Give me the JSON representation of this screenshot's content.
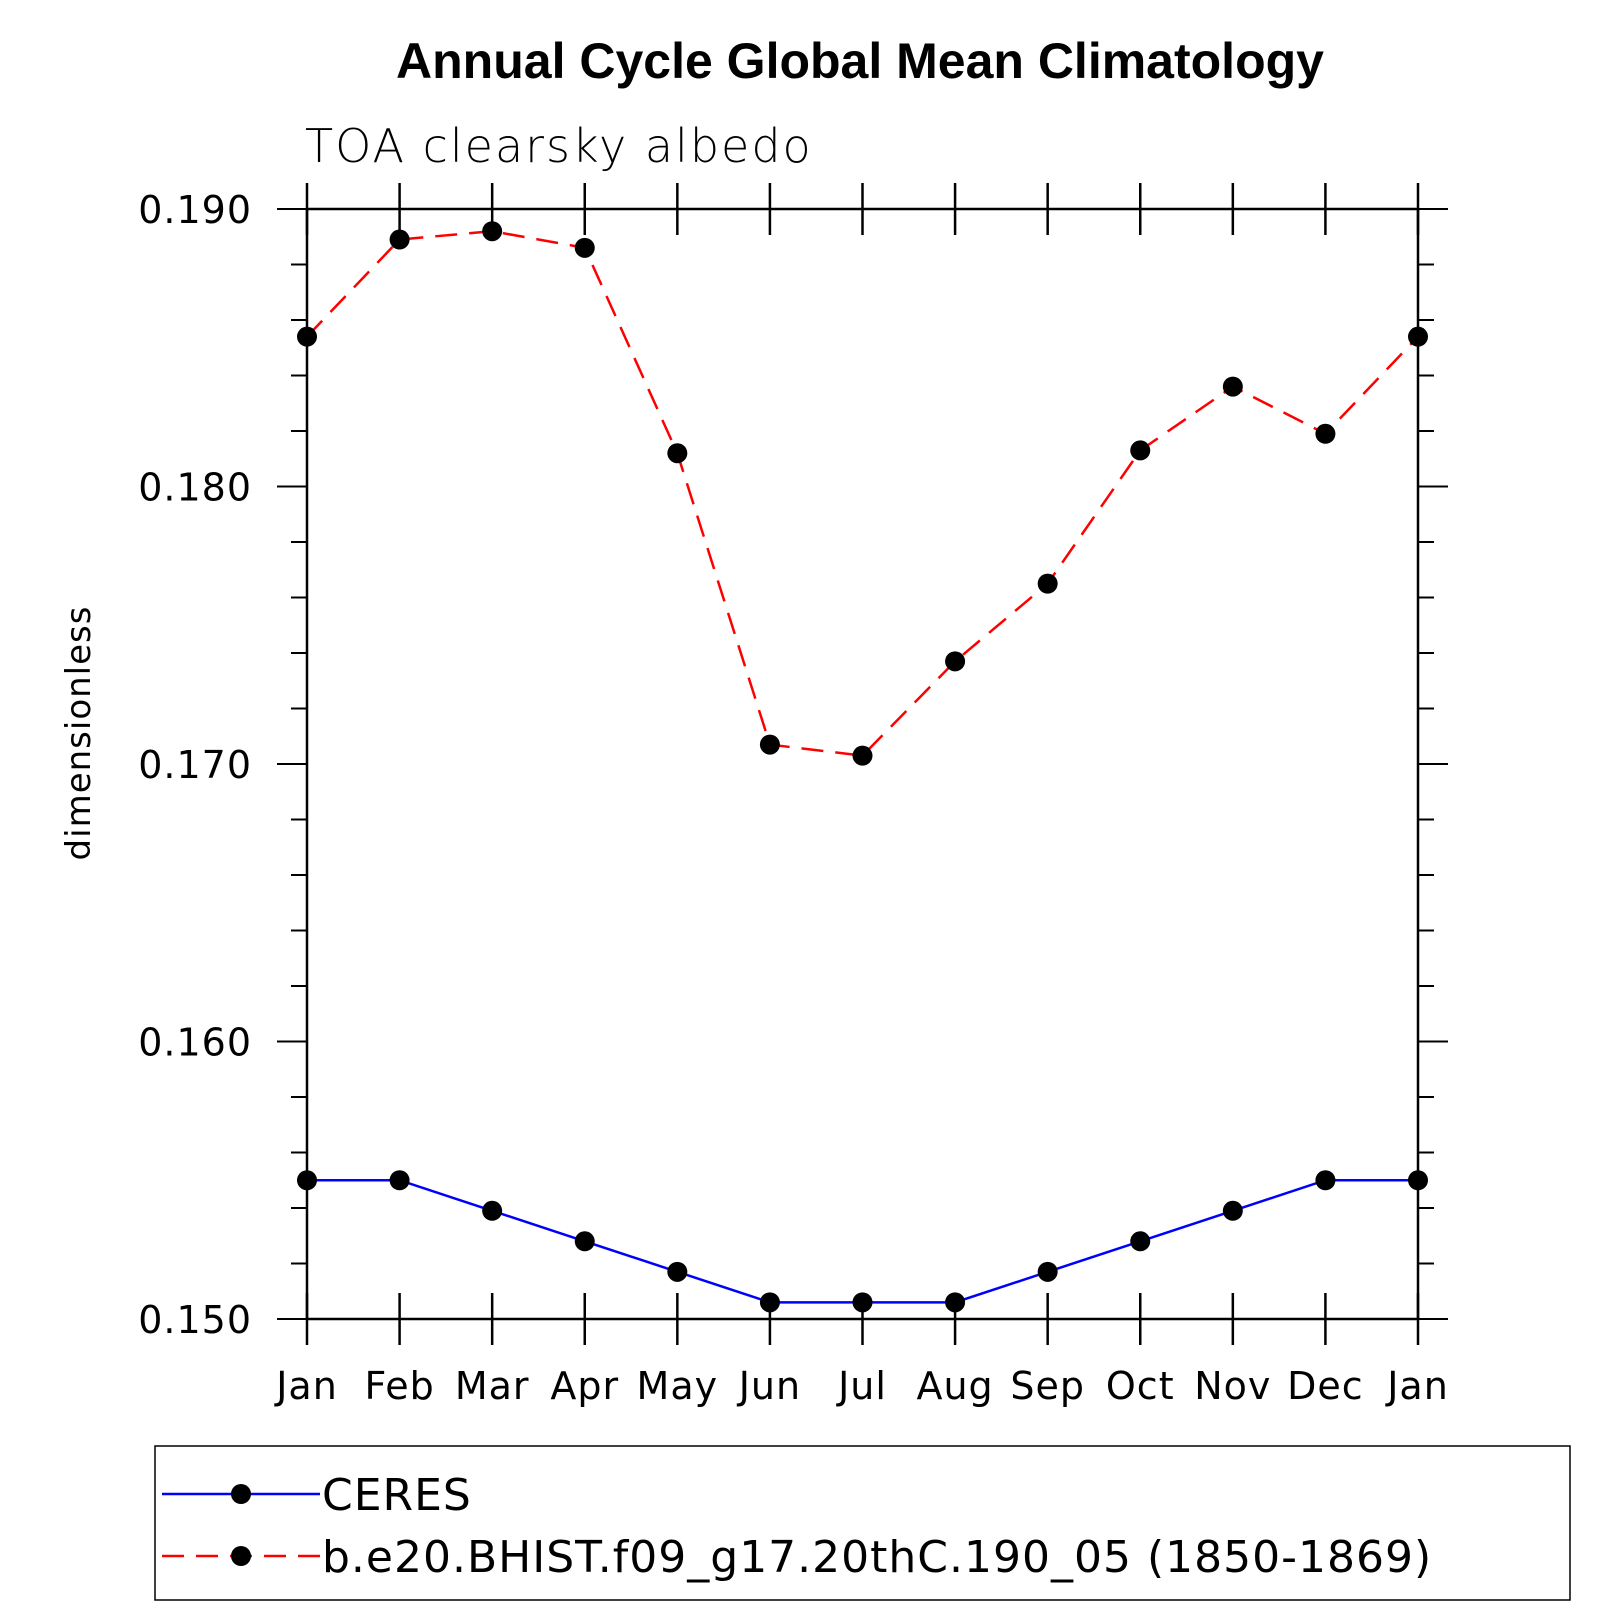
{
  "chart_data": {
    "type": "line",
    "title": "Annual Cycle Global Mean Climatology",
    "subtitle": "TOA clearsky albedo",
    "ylabel": "dimensionless",
    "xlabel": "",
    "categories": [
      "Jan",
      "Feb",
      "Mar",
      "Apr",
      "May",
      "Jun",
      "Jul",
      "Aug",
      "Sep",
      "Oct",
      "Nov",
      "Dec",
      "Jan"
    ],
    "ylim": [
      0.15,
      0.19
    ],
    "yticks": [
      0.15,
      0.16,
      0.17,
      0.18,
      0.19
    ],
    "ytick_labels": [
      "0.150",
      "0.160",
      "0.170",
      "0.180",
      "0.190"
    ],
    "grid": false,
    "legend_position": "bottom",
    "series": [
      {
        "name": "CERES",
        "color": "#0000ff",
        "dash": "solid",
        "marker": "filled-circle",
        "values": [
          0.155,
          0.155,
          0.1539,
          0.1528,
          0.1517,
          0.1506,
          0.1506,
          0.1506,
          0.1517,
          0.1528,
          0.1539,
          0.155,
          0.155
        ]
      },
      {
        "name": "b.e20.BHIST.f09_g17.20thC.190_05 (1850-1869)",
        "color": "#ff0000",
        "dash": "dashed",
        "marker": "filled-circle",
        "values": [
          0.1854,
          0.1889,
          0.1892,
          0.1886,
          0.1812,
          0.1707,
          0.1703,
          0.1737,
          0.1765,
          0.1813,
          0.1836,
          0.1819,
          0.1854
        ]
      }
    ]
  }
}
